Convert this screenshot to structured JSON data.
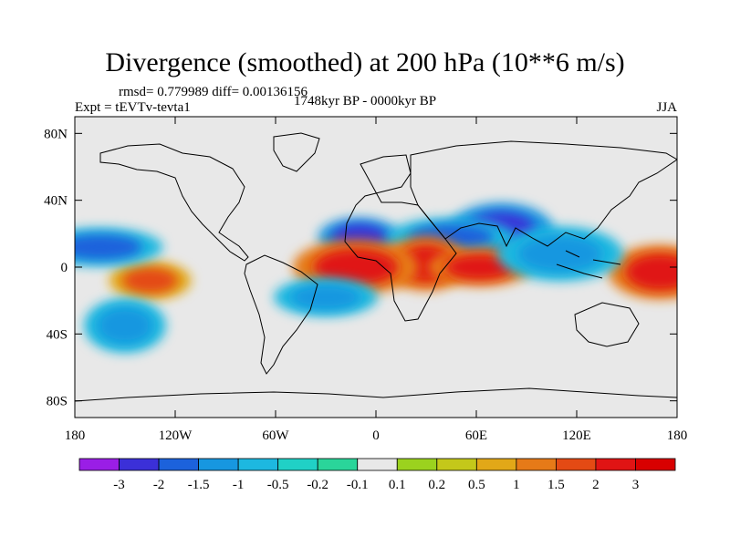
{
  "title": "Divergence (smoothed) at 200 hPa (10**6 m/s)",
  "stats_line": "rmsd= 0.779989 diff= 0.00136156",
  "experiment_line": "Expt = tEVTv-tevta1",
  "period_line": "1748kyr BP - 0000kyr BP",
  "season": "JJA",
  "chart_data": {
    "type": "heatmap",
    "description_variable": "Divergence difference at 200 hPa",
    "units": "10**6 m/s",
    "x_range": [
      -180,
      180
    ],
    "y_range": [
      -90,
      90
    ],
    "x_ticks": [
      {
        "value": -180,
        "label": "180"
      },
      {
        "value": -120,
        "label": "120W"
      },
      {
        "value": -60,
        "label": "60W"
      },
      {
        "value": 0,
        "label": "0"
      },
      {
        "value": 60,
        "label": "60E"
      },
      {
        "value": 120,
        "label": "120E"
      },
      {
        "value": 180,
        "label": "180"
      }
    ],
    "y_ticks": [
      {
        "value": 80,
        "label": "80N"
      },
      {
        "value": 40,
        "label": "40N"
      },
      {
        "value": 0,
        "label": "0"
      },
      {
        "value": -40,
        "label": "40S"
      },
      {
        "value": -80,
        "label": "80S"
      }
    ],
    "colorbar": {
      "levels": [
        "-3",
        "-2",
        "-1.5",
        "-1",
        "-0.5",
        "-0.2",
        "-0.1",
        "0.1",
        "0.2",
        "0.5",
        "1",
        "1.5",
        "2",
        "3"
      ],
      "colors": [
        "#9a1ee6",
        "#3b30d8",
        "#1c62dc",
        "#1797e0",
        "#1db8e0",
        "#20d1c6",
        "#2ad59a",
        "#e8e8e8",
        "#9bd21e",
        "#c4c81a",
        "#e2a818",
        "#e67a18",
        "#e44a14",
        "#e01414",
        "#d80000"
      ]
    },
    "features": [
      {
        "name": "west-africa-convergence",
        "lon": -10,
        "lat": 18,
        "level": -2.5
      },
      {
        "name": "india-convergence",
        "lon": 75,
        "lat": 22,
        "level": -2.5
      },
      {
        "name": "arabia-convergence",
        "lon": 45,
        "lat": 18,
        "level": -1.8
      },
      {
        "name": "equatorial-africa-divergence",
        "lon": 30,
        "lat": 2,
        "level": 2.5
      },
      {
        "name": "indian-ocean-divergence",
        "lon": 62,
        "lat": 0,
        "level": 2.2
      },
      {
        "name": "gulf-guinea-divergence",
        "lon": -12,
        "lat": 0,
        "level": 2.5
      },
      {
        "name": "east-pacific-divergence",
        "lon": -135,
        "lat": -8,
        "level": 2.0
      },
      {
        "name": "west-pacific-divergence",
        "lon": 170,
        "lat": -3,
        "level": 2.5
      },
      {
        "name": "central-pacific-convergence",
        "lon": -165,
        "lat": 12,
        "level": -1.5
      },
      {
        "name": "south-pacific-convergence",
        "lon": -150,
        "lat": -35,
        "level": -1.0
      },
      {
        "name": "atlantic-convergence",
        "lon": -30,
        "lat": -18,
        "level": -1.0
      },
      {
        "name": "maritime-continent-convergence",
        "lon": 110,
        "lat": 8,
        "level": -1.2
      }
    ]
  }
}
